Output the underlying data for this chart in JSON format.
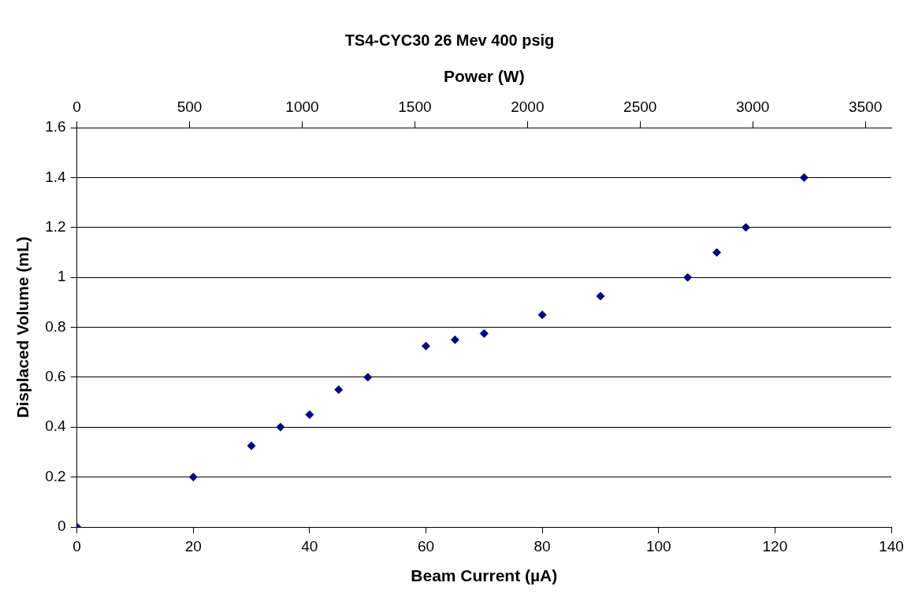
{
  "chart_data": {
    "type": "scatter",
    "title": "TS4-CYC30 26 Mev 400 psig",
    "xlabel": "Beam Current (µA)",
    "ylabel": "Displaced Volume (mL)",
    "x2label": "Power (W)",
    "x": [
      0,
      20,
      30,
      35,
      40,
      45,
      50,
      60,
      65,
      70,
      80,
      90,
      105,
      110,
      115,
      125
    ],
    "series": [
      {
        "color": "#000080",
        "values": [
          0,
          0.2,
          0.325,
          0.4,
          0.45,
          0.55,
          0.6,
          0.725,
          0.75,
          0.775,
          0.85,
          0.925,
          1.0,
          1.1,
          1.2,
          1.4
        ]
      }
    ],
    "xlim": [
      0,
      140
    ],
    "xticks": [
      0,
      20,
      40,
      60,
      80,
      100,
      120,
      140
    ],
    "x2lim": [
      0,
      3615
    ],
    "x2ticks": [
      0,
      500,
      1000,
      1500,
      2000,
      2500,
      3000,
      3500
    ],
    "ylim": [
      0,
      1.6
    ],
    "yticks": [
      0,
      0.2,
      0.4,
      0.6,
      0.8,
      1,
      1.2,
      1.4,
      1.6
    ],
    "grid": "y",
    "legend": false,
    "marker": "diamond"
  }
}
